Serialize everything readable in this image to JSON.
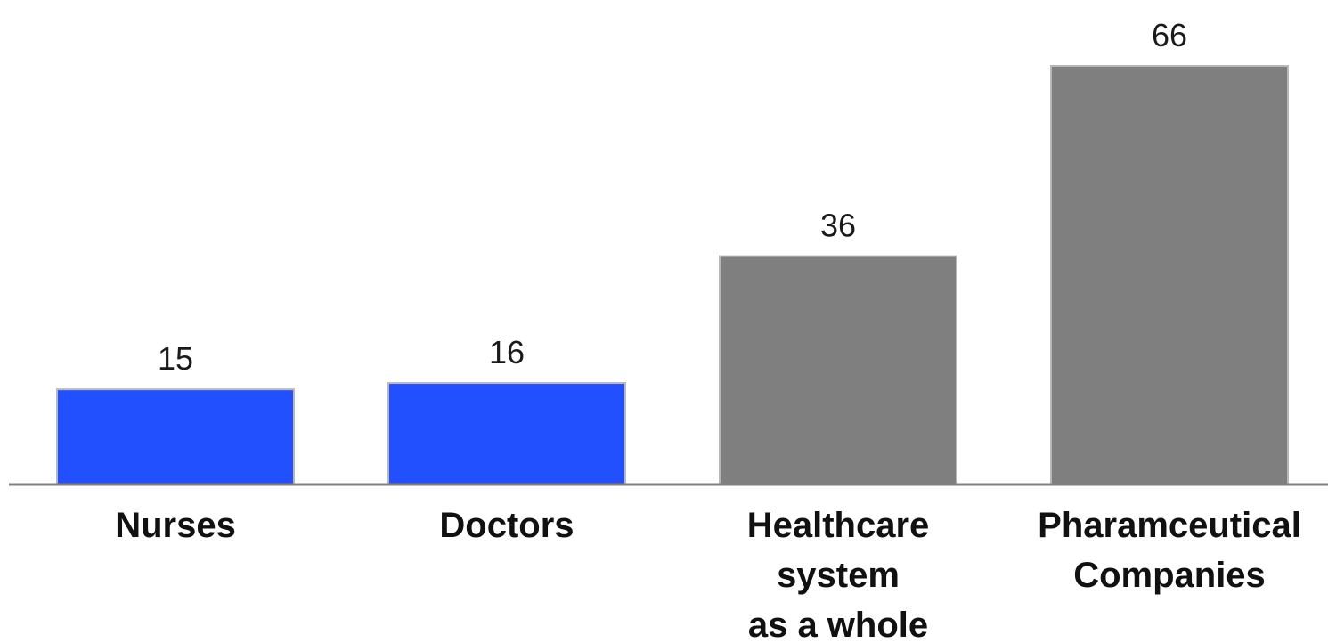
{
  "chart_data": {
    "type": "bar",
    "categories": [
      [
        "Nurses"
      ],
      [
        "Doctors"
      ],
      [
        "Healthcare",
        "system",
        "as a whole"
      ],
      [
        "Pharamceutical",
        "Companies"
      ]
    ],
    "values": [
      15,
      16,
      36,
      66
    ],
    "colors": [
      "#2350FF",
      "#2350FF",
      "#7F7F7F",
      "#7F7F7F"
    ],
    "title": "",
    "xlabel": "",
    "ylabel": "",
    "ylim": [
      0,
      66
    ],
    "grid": false,
    "legend": "none"
  }
}
